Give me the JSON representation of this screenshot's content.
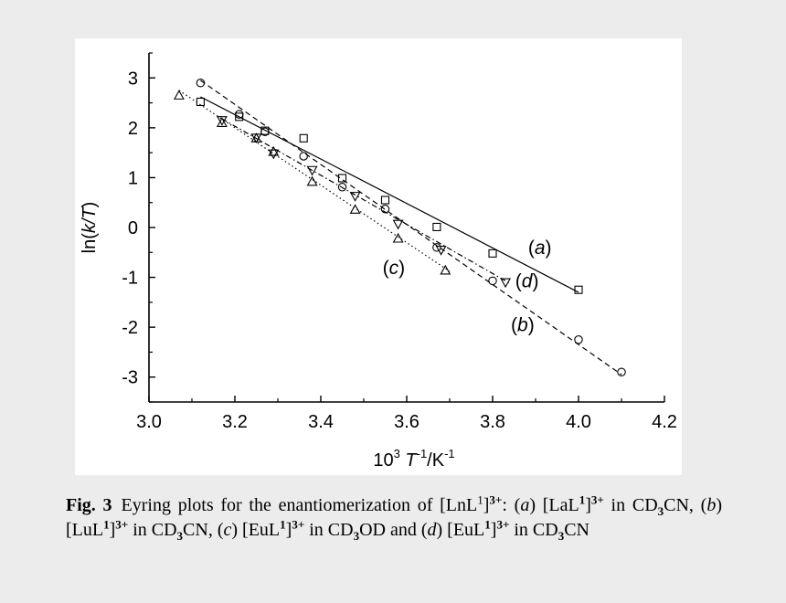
{
  "chart_data": {
    "type": "scatter",
    "xlabel_prefix": "10",
    "xlabel_exp": "3",
    "xlabel_var": "T",
    "xlabel_exp2": "-1",
    "xlabel_unit": "/K",
    "xlabel_exp3": "-1",
    "ylabel_pre": "ln(",
    "ylabel_var": "k/T",
    "ylabel_post": ")",
    "xlim": [
      3.0,
      4.2
    ],
    "ylim": [
      -3.5,
      3.5
    ],
    "xticks": [
      "3.0",
      "3.2",
      "3.4",
      "3.6",
      "3.8",
      "4.0",
      "4.2"
    ],
    "yticks": [
      "-3",
      "-2",
      "-1",
      "0",
      "1",
      "2",
      "3"
    ],
    "grid": false,
    "series": [
      {
        "name": "(a)",
        "marker": "square",
        "line": "solid",
        "x": [
          3.12,
          3.21,
          3.27,
          3.36,
          3.45,
          3.55,
          3.67,
          3.8,
          4.0
        ],
        "y": [
          2.52,
          2.22,
          1.94,
          1.79,
          0.99,
          0.55,
          0.01,
          -0.52,
          -1.25
        ],
        "fit_x": [
          3.12,
          4.0
        ],
        "fit_y": [
          2.62,
          -1.3
        ],
        "label": "(a)",
        "label_x": 3.91,
        "label_y": -0.53
      },
      {
        "name": "(b)",
        "marker": "circle",
        "line": "dashed",
        "x": [
          3.12,
          3.21,
          3.27,
          3.36,
          3.45,
          3.55,
          3.67,
          3.8,
          4.0,
          4.1
        ],
        "y": [
          2.9,
          2.27,
          1.92,
          1.43,
          0.81,
          0.37,
          -0.4,
          -1.07,
          -2.25,
          -2.9
        ],
        "fit_x": [
          3.12,
          4.1
        ],
        "fit_y": [
          2.95,
          -2.95
        ],
        "label": "(b)",
        "label_x": 3.87,
        "label_y": -2.08
      },
      {
        "name": "(c)",
        "marker": "triangle-up",
        "line": "dotted",
        "x": [
          3.07,
          3.17,
          3.25,
          3.29,
          3.38,
          3.48,
          3.58,
          3.69
        ],
        "y": [
          2.65,
          2.1,
          1.79,
          1.52,
          0.92,
          0.36,
          -0.22,
          -0.86
        ],
        "fit_x": [
          3.07,
          3.7
        ],
        "fit_y": [
          2.75,
          -0.88
        ],
        "label": "(c)",
        "label_x": 3.57,
        "label_y": -0.93
      },
      {
        "name": "(d)",
        "marker": "triangle-down",
        "line": "dashdot",
        "x": [
          3.17,
          3.25,
          3.29,
          3.38,
          3.48,
          3.58,
          3.68,
          3.83
        ],
        "y": [
          2.15,
          1.8,
          1.48,
          1.15,
          0.63,
          0.07,
          -0.45,
          -1.1
        ],
        "fit_x": [
          3.17,
          3.84
        ],
        "fit_y": [
          2.18,
          -1.12
        ],
        "label": "(d)",
        "label_x": 3.88,
        "label_y": -1.2
      }
    ]
  },
  "caption": {
    "fig": "Fig. 3",
    "parts": [
      {
        "t": "Eyring plots for the enantiomerization of [LnL"
      },
      {
        "t": "1",
        "sup": true
      },
      {
        "t": "]"
      },
      {
        "t": "3+",
        "sup": true,
        "b": true
      },
      {
        "t": ": ("
      },
      {
        "t": "a",
        "i": true
      },
      {
        "t": ") [LaL"
      },
      {
        "t": "1",
        "sup": true,
        "b": true
      },
      {
        "t": "]"
      },
      {
        "t": "3+",
        "sup": true,
        "b": true
      },
      {
        "t": " in CD"
      },
      {
        "t": "3",
        "sub": true,
        "b": true
      },
      {
        "t": "CN, ("
      },
      {
        "t": "b",
        "i": true
      },
      {
        "t": ") [LuL"
      },
      {
        "t": "1",
        "sup": true,
        "b": true
      },
      {
        "t": "]"
      },
      {
        "t": "3+",
        "sup": true,
        "b": true
      },
      {
        "t": " in CD"
      },
      {
        "t": "3",
        "sub": true,
        "b": true
      },
      {
        "t": "CN, ("
      },
      {
        "t": "c",
        "i": true
      },
      {
        "t": ") [EuL"
      },
      {
        "t": "1",
        "sup": true,
        "b": true
      },
      {
        "t": "]"
      },
      {
        "t": "3+",
        "sup": true,
        "b": true
      },
      {
        "t": " in CD"
      },
      {
        "t": "3",
        "sub": true,
        "b": true
      },
      {
        "t": "OD and ("
      },
      {
        "t": "d",
        "i": true
      },
      {
        "t": ") [EuL"
      },
      {
        "t": "1",
        "sup": true,
        "b": true
      },
      {
        "t": "]"
      },
      {
        "t": "3+",
        "sup": true,
        "b": true
      },
      {
        "t": " in CD"
      },
      {
        "t": "3",
        "sub": true,
        "b": true
      },
      {
        "t": "CN"
      }
    ]
  }
}
